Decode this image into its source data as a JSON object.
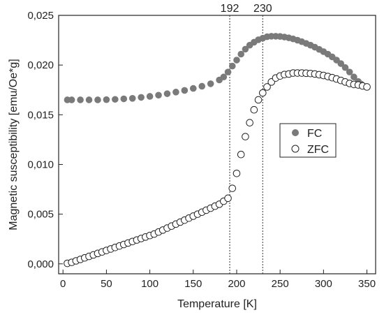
{
  "chart_data": {
    "type": "scatter",
    "xlabel": "Temperature [K]",
    "ylabel": "Magnetic susceptibility [emu/Oe*g]",
    "xlim": [
      -5,
      360
    ],
    "ylim": [
      -0.001,
      0.025
    ],
    "xticks": [
      0,
      50,
      100,
      150,
      200,
      250,
      300,
      350
    ],
    "xtick_labels": [
      "0",
      "50",
      "100",
      "150",
      "200",
      "250",
      "300",
      "350"
    ],
    "yticks": [
      0.0,
      0.005,
      0.01,
      0.015,
      0.02,
      0.025
    ],
    "ytick_labels": [
      "0,000",
      "0,005",
      "0,010",
      "0,015",
      "0,020",
      "0,025"
    ],
    "grid": false,
    "legend_position": "center-right",
    "vlines": [
      {
        "x": 192,
        "label": "192"
      },
      {
        "x": 230,
        "label": "230"
      }
    ],
    "series": [
      {
        "name": "FC",
        "marker": "filled-circle",
        "color": "#7a7a7a",
        "points": [
          [
            5,
            0.0165
          ],
          [
            10,
            0.0165
          ],
          [
            20,
            0.0165
          ],
          [
            30,
            0.0165
          ],
          [
            40,
            0.0165
          ],
          [
            50,
            0.01652
          ],
          [
            60,
            0.01655
          ],
          [
            70,
            0.0166
          ],
          [
            80,
            0.01665
          ],
          [
            90,
            0.01675
          ],
          [
            100,
            0.01685
          ],
          [
            110,
            0.01697
          ],
          [
            120,
            0.01712
          ],
          [
            130,
            0.01728
          ],
          [
            140,
            0.01745
          ],
          [
            150,
            0.01765
          ],
          [
            160,
            0.01787
          ],
          [
            170,
            0.01812
          ],
          [
            180,
            0.0185
          ],
          [
            185,
            0.0188
          ],
          [
            190,
            0.0193
          ],
          [
            195,
            0.0199
          ],
          [
            200,
            0.0205
          ],
          [
            205,
            0.0211
          ],
          [
            210,
            0.0216
          ],
          [
            215,
            0.022
          ],
          [
            220,
            0.0223
          ],
          [
            225,
            0.02255
          ],
          [
            230,
            0.0227
          ],
          [
            235,
            0.02285
          ],
          [
            240,
            0.0229
          ],
          [
            245,
            0.0229
          ],
          [
            250,
            0.02288
          ],
          [
            255,
            0.02282
          ],
          [
            260,
            0.02274
          ],
          [
            265,
            0.02263
          ],
          [
            270,
            0.0225
          ],
          [
            275,
            0.02235
          ],
          [
            280,
            0.02218
          ],
          [
            285,
            0.022
          ],
          [
            290,
            0.0218
          ],
          [
            295,
            0.02158
          ],
          [
            300,
            0.02135
          ],
          [
            305,
            0.0211
          ],
          [
            310,
            0.02082
          ],
          [
            315,
            0.0205
          ],
          [
            320,
            0.02015
          ],
          [
            325,
            0.01975
          ],
          [
            330,
            0.0193
          ],
          [
            335,
            0.0188
          ],
          [
            340,
            0.01835
          ],
          [
            343,
            0.0181
          ]
        ]
      },
      {
        "name": "ZFC",
        "marker": "open-circle",
        "color": "#222222",
        "points": [
          [
            5,
            5e-05
          ],
          [
            10,
            0.00015
          ],
          [
            15,
            0.0003
          ],
          [
            20,
            0.00045
          ],
          [
            25,
            0.0006
          ],
          [
            30,
            0.00075
          ],
          [
            35,
            0.0009
          ],
          [
            40,
            0.00105
          ],
          [
            45,
            0.0012
          ],
          [
            50,
            0.00135
          ],
          [
            55,
            0.0015
          ],
          [
            60,
            0.00165
          ],
          [
            65,
            0.0018
          ],
          [
            70,
            0.00195
          ],
          [
            75,
            0.0021
          ],
          [
            80,
            0.00225
          ],
          [
            85,
            0.0024
          ],
          [
            90,
            0.00255
          ],
          [
            95,
            0.0027
          ],
          [
            100,
            0.00285
          ],
          [
            105,
            0.003
          ],
          [
            110,
            0.0032
          ],
          [
            115,
            0.0034
          ],
          [
            120,
            0.0036
          ],
          [
            125,
            0.0038
          ],
          [
            130,
            0.004
          ],
          [
            135,
            0.0042
          ],
          [
            140,
            0.0044
          ],
          [
            145,
            0.0046
          ],
          [
            150,
            0.0048
          ],
          [
            155,
            0.005
          ],
          [
            160,
            0.0052
          ],
          [
            165,
            0.0054
          ],
          [
            170,
            0.0056
          ],
          [
            175,
            0.0058
          ],
          [
            180,
            0.006
          ],
          [
            185,
            0.0063
          ],
          [
            190,
            0.0066
          ],
          [
            195,
            0.0076
          ],
          [
            200,
            0.0091
          ],
          [
            205,
            0.011
          ],
          [
            210,
            0.0128
          ],
          [
            215,
            0.0142
          ],
          [
            220,
            0.0155
          ],
          [
            225,
            0.0165
          ],
          [
            230,
            0.0172
          ],
          [
            235,
            0.0178
          ],
          [
            240,
            0.0183
          ],
          [
            245,
            0.0187
          ],
          [
            250,
            0.0189
          ],
          [
            255,
            0.01905
          ],
          [
            260,
            0.0191
          ],
          [
            265,
            0.0192
          ],
          [
            270,
            0.0192
          ],
          [
            275,
            0.0192
          ],
          [
            280,
            0.01918
          ],
          [
            285,
            0.01915
          ],
          [
            290,
            0.0191
          ],
          [
            295,
            0.01903
          ],
          [
            300,
            0.01895
          ],
          [
            305,
            0.01885
          ],
          [
            310,
            0.01873
          ],
          [
            315,
            0.0186
          ],
          [
            320,
            0.01845
          ],
          [
            325,
            0.0183
          ],
          [
            330,
            0.01815
          ],
          [
            335,
            0.01805
          ],
          [
            340,
            0.018
          ],
          [
            345,
            0.0179
          ],
          [
            350,
            0.0178
          ]
        ]
      }
    ]
  }
}
